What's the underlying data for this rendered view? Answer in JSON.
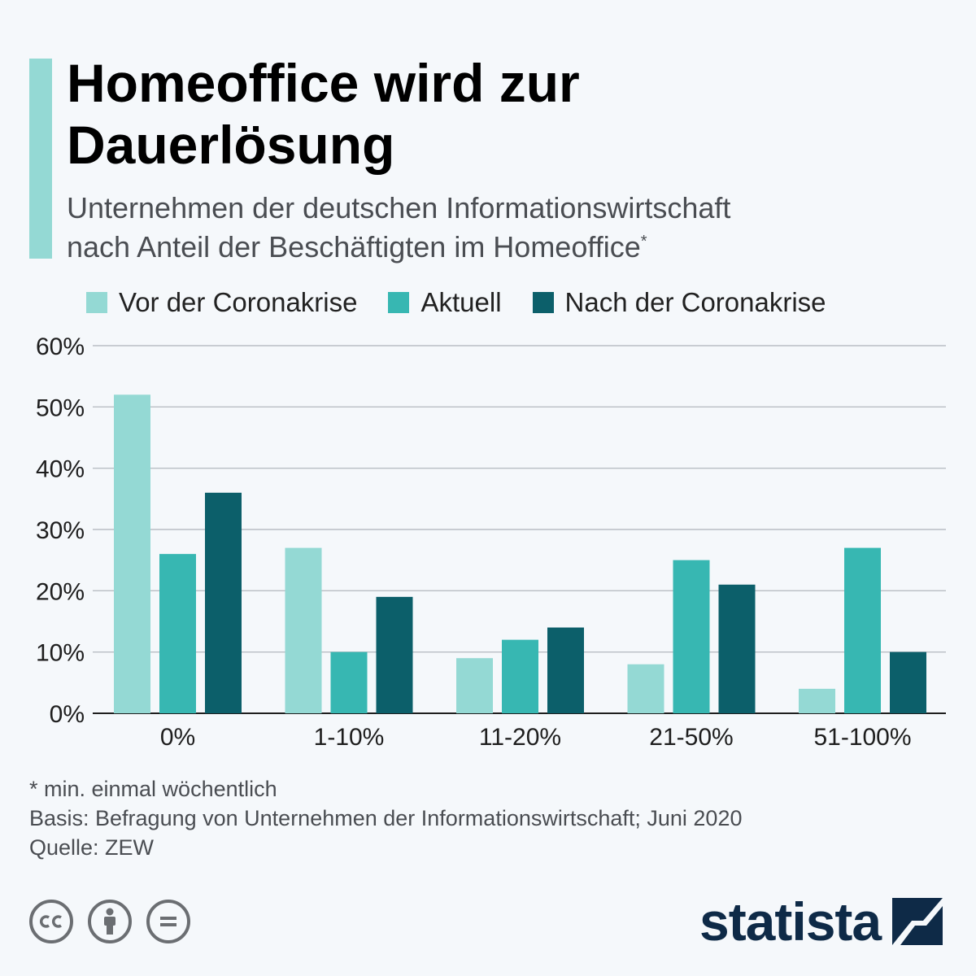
{
  "header": {
    "title_line1": "Homeoffice wird zur",
    "title_line2": "Dauerlösung",
    "subtitle_line1": "Unternehmen der deutschen Informationswirtschaft",
    "subtitle_line2": "nach Anteil der Beschäftigten im Homeoffice",
    "subtitle_mark": "*"
  },
  "chart_data": {
    "type": "bar",
    "categories": [
      "0%",
      "1-10%",
      "11-20%",
      "21-50%",
      "51-100%"
    ],
    "series": [
      {
        "name": "Vor der Coronakrise",
        "color": "#94d9d4",
        "values": [
          52,
          27,
          9,
          8,
          4
        ]
      },
      {
        "name": "Aktuell",
        "color": "#37b7b2",
        "values": [
          26,
          10,
          12,
          25,
          27
        ]
      },
      {
        "name": "Nach der Coronakrise",
        "color": "#0c5f6a",
        "values": [
          36,
          19,
          14,
          21,
          10
        ]
      }
    ],
    "yticks": [
      0,
      10,
      20,
      30,
      40,
      50,
      60
    ],
    "ytick_labels": [
      "0%",
      "10%",
      "20%",
      "30%",
      "40%",
      "50%",
      "60%"
    ],
    "ylim": [
      0,
      60
    ],
    "grid": true,
    "legend_position": "top"
  },
  "notes": {
    "footnote": "* min. einmal wöchentlich",
    "basis": "Basis: Befragung von Unternehmen der Informationswirtschaft; Juni 2020",
    "source": "Quelle: ZEW"
  },
  "footer": {
    "brand": "statista",
    "cc_icon": "cc-icon",
    "by_icon": "person-icon",
    "nd_icon": "equals-icon"
  }
}
